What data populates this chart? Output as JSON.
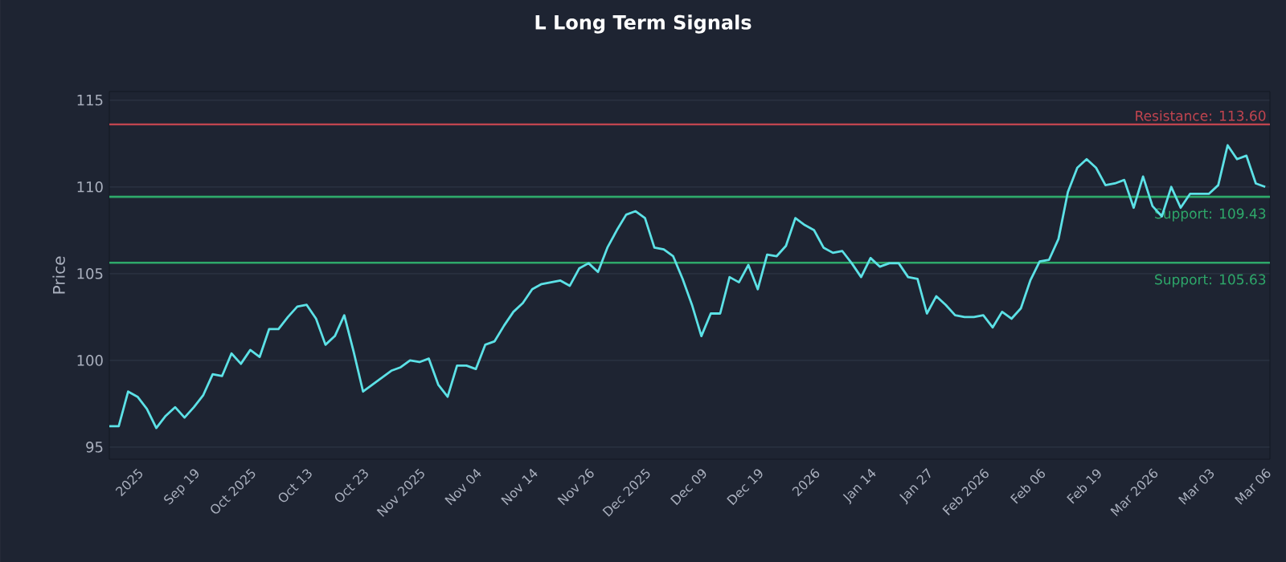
{
  "chart_data": {
    "type": "line",
    "title": "L Long Term Signals",
    "ylabel": "Price",
    "categories": [
      null,
      null,
      null,
      "2025",
      null,
      null,
      null,
      null,
      null,
      "Sep 19",
      null,
      null,
      null,
      null,
      null,
      "Oct 2025",
      null,
      null,
      null,
      null,
      null,
      "Oct 13",
      null,
      null,
      null,
      null,
      null,
      "Oct 23",
      null,
      null,
      null,
      null,
      null,
      "Nov 2025",
      null,
      null,
      null,
      null,
      null,
      "Nov 04",
      null,
      null,
      null,
      null,
      null,
      "Nov 14",
      null,
      null,
      null,
      null,
      null,
      "Nov 26",
      null,
      null,
      null,
      null,
      null,
      "Dec 2025",
      null,
      null,
      null,
      null,
      null,
      "Dec 09",
      null,
      null,
      null,
      null,
      null,
      "Dec 19",
      null,
      null,
      null,
      null,
      null,
      "2026",
      null,
      null,
      null,
      null,
      null,
      "Jan 14",
      null,
      null,
      null,
      null,
      null,
      "Jan 27",
      null,
      null,
      null,
      null,
      null,
      "Feb 2026",
      null,
      null,
      null,
      null,
      null,
      "Feb 06",
      null,
      null,
      null,
      null,
      null,
      "Feb 19",
      null,
      null,
      null,
      null,
      null,
      "Mar 2026",
      null,
      null,
      null,
      null,
      null,
      "Mar 03",
      null,
      null,
      null,
      null,
      null,
      "Mar 06"
    ],
    "series": [
      {
        "color": "#5ce1e6",
        "values": [
          96.2,
          96.2,
          98.2,
          97.9,
          97.2,
          96.1,
          96.8,
          97.3,
          96.7,
          97.3,
          98.0,
          99.2,
          99.1,
          100.4,
          99.8,
          100.6,
          100.2,
          101.8,
          101.8,
          102.5,
          103.1,
          103.2,
          102.4,
          100.9,
          101.4,
          102.6,
          100.5,
          98.2,
          98.6,
          99.0,
          99.4,
          99.6,
          100.0,
          99.9,
          100.1,
          98.6,
          97.9,
          99.7,
          99.7,
          99.5,
          100.9,
          101.1,
          102.0,
          102.8,
          103.3,
          104.1,
          104.4,
          104.5,
          104.6,
          104.3,
          105.3,
          105.6,
          105.1,
          106.5,
          107.5,
          108.4,
          108.6,
          108.2,
          106.5,
          106.4,
          106.0,
          104.7,
          103.2,
          101.4,
          102.7,
          102.7,
          104.8,
          104.5,
          105.5,
          104.1,
          106.1,
          106.0,
          106.6,
          108.2,
          107.8,
          107.5,
          106.5,
          106.2,
          106.3,
          105.6,
          104.8,
          105.9,
          105.4,
          105.6,
          105.6,
          104.8,
          104.7,
          102.7,
          103.7,
          103.2,
          102.6,
          102.5,
          102.5,
          102.6,
          101.9,
          102.8,
          102.4,
          103.0,
          104.6,
          105.7,
          105.8,
          107.0,
          109.7,
          111.1,
          111.6,
          111.1,
          110.1,
          110.2,
          110.4,
          108.8,
          110.6,
          108.9,
          108.3,
          110.0,
          108.8,
          109.6,
          109.6,
          109.6,
          110.1,
          112.4,
          111.6,
          111.8,
          110.2,
          110.0
        ]
      }
    ],
    "ylim": [
      94.3,
      115.5
    ],
    "yticks": [
      95,
      100,
      105,
      110,
      115
    ],
    "grid": "y",
    "marker": "none",
    "line_style": "solid",
    "ref_lines": [
      {
        "axis": "y",
        "value": 113.6,
        "label": "Resistance: 113.60",
        "color": "#c0444f"
      },
      {
        "axis": "y",
        "value": 109.43,
        "label": "Support: 109.43",
        "color": "#2ea86a"
      },
      {
        "axis": "y",
        "value": 105.63,
        "label": "Support: 105.63",
        "color": "#2ea86a"
      }
    ]
  }
}
